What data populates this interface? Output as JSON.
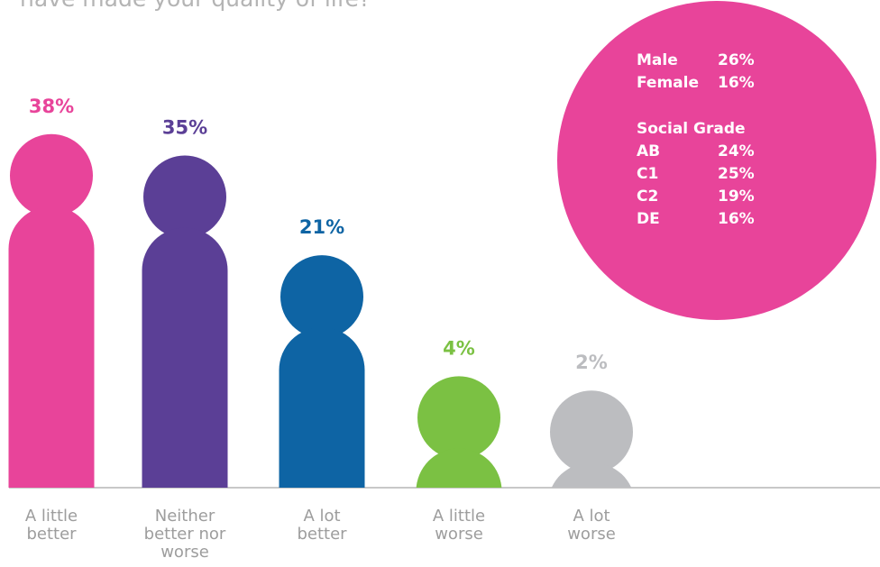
{
  "chart_data": {
    "type": "person-bar",
    "title": "have made your quality of life?",
    "categories": [
      "A little better",
      "Neither better nor worse",
      "A lot better",
      "A little worse",
      "A lot worse"
    ],
    "values": [
      38,
      35,
      21,
      4,
      2
    ],
    "value_labels": [
      "38%",
      "35%",
      "21%",
      "4%",
      "2%"
    ],
    "colors": [
      "#e8449a",
      "#5b3f96",
      "#0e64a4",
      "#7bc143",
      "#bcbdc0"
    ],
    "callout": {
      "color": "#e8449a",
      "gender": [
        {
          "label": "Male",
          "value": "26%"
        },
        {
          "label": "Female",
          "value": "16%"
        }
      ],
      "heading": "Social Grade",
      "grade": [
        {
          "label": "AB",
          "value": "24%"
        },
        {
          "label": "C1",
          "value": "25%"
        },
        {
          "label": "C2",
          "value": "19%"
        },
        {
          "label": "DE",
          "value": "16%"
        }
      ]
    }
  }
}
